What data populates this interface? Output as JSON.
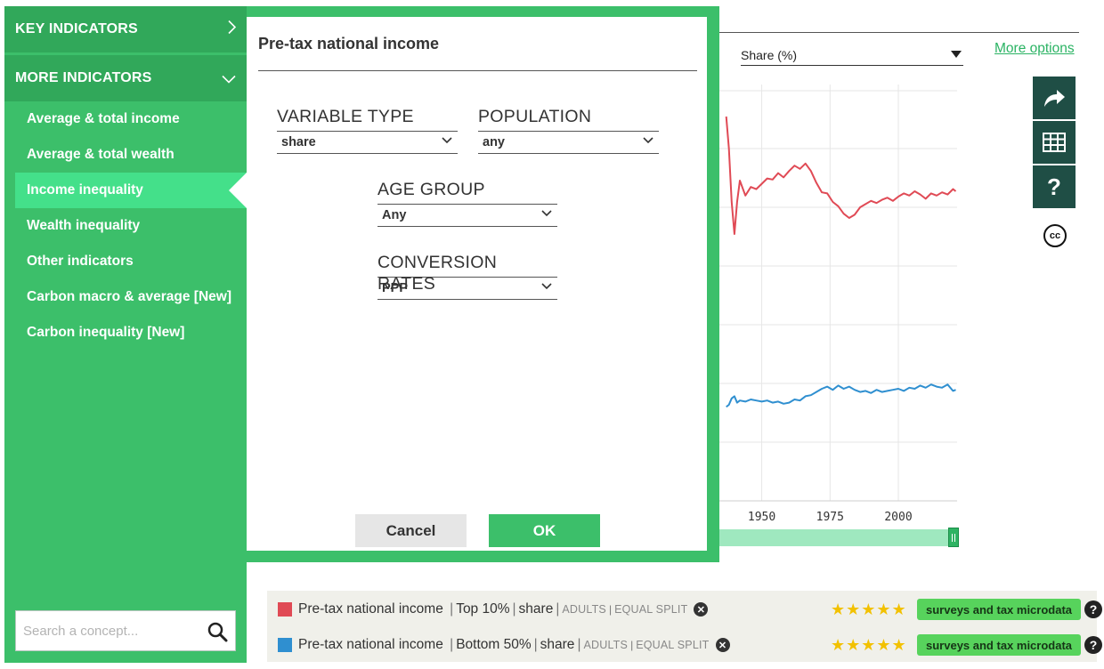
{
  "sidebar": {
    "key_indicators": "KEY INDICATORS",
    "more_indicators": "MORE INDICATORS",
    "items": [
      {
        "label": "Average & total income"
      },
      {
        "label": "Average & total wealth"
      },
      {
        "label": "Income inequality",
        "active": true
      },
      {
        "label": "Wealth inequality"
      },
      {
        "label": "Other indicators"
      },
      {
        "label": "Carbon macro & average [New]"
      },
      {
        "label": "Carbon inequality [New]"
      }
    ],
    "search_placeholder": "Search a concept..."
  },
  "modal": {
    "title": "Pre-tax national income",
    "fields": {
      "variable_type": {
        "label": "VARIABLE TYPE",
        "value": "share"
      },
      "population": {
        "label": "POPULATION",
        "value": "any"
      },
      "age_group": {
        "label": "AGE GROUP",
        "value": "Any"
      },
      "conversion_rates": {
        "label": "CONVERSION RATES",
        "value": "PPP"
      }
    },
    "cancel_label": "Cancel",
    "ok_label": "OK"
  },
  "chart_controls": {
    "share_select": "Share (%)",
    "more_options": "More options"
  },
  "chart_data": {
    "type": "line",
    "x_ticks": [
      "1950",
      "1975",
      "2000"
    ],
    "series": [
      {
        "color": "#e04a55",
        "x": [
          1937,
          1938,
          1939,
          1940,
          1941,
          1942,
          1944,
          1946,
          1948,
          1950,
          1952,
          1954,
          1956,
          1958,
          1960,
          1962,
          1964,
          1966,
          1968,
          1970,
          1972,
          1974,
          1976,
          1978,
          1980,
          1982,
          1984,
          1986,
          1988,
          1990,
          1992,
          1994,
          1996,
          1998,
          2000,
          2002,
          2004,
          2006,
          2008,
          2010,
          2012,
          2014,
          2016,
          2018,
          2020,
          2021
        ],
        "y": [
          46,
          43,
          38,
          35,
          38,
          40,
          38.6,
          39.4,
          39.2,
          39.7,
          40.2,
          40.1,
          40.7,
          40.3,
          40.9,
          41.4,
          41.1,
          41.6,
          40.9,
          39.8,
          38.9,
          38.8,
          38.0,
          37.6,
          36.9,
          36.5,
          36.8,
          37.5,
          37.8,
          38.1,
          37.9,
          38.2,
          38.4,
          38.1,
          38.5,
          38.8,
          38.6,
          39.0,
          38.7,
          38.3,
          38.8,
          38.6,
          38.9,
          38.7,
          39.2,
          39.0
        ]
      },
      {
        "color": "#2f8fd0",
        "x": [
          1937,
          1938,
          1939,
          1940,
          1941,
          1942,
          1944,
          1946,
          1948,
          1950,
          1952,
          1954,
          1956,
          1958,
          1960,
          1962,
          1964,
          1966,
          1968,
          1970,
          1972,
          1974,
          1976,
          1978,
          1980,
          1982,
          1984,
          1986,
          1988,
          1990,
          1992,
          1994,
          1996,
          1998,
          2000,
          2002,
          2004,
          2006,
          2008,
          2010,
          2012,
          2014,
          2016,
          2018,
          2020,
          2021
        ],
        "y": [
          18.8,
          19.0,
          19.6,
          19.8,
          19.2,
          19.4,
          19.3,
          19.5,
          19.4,
          19.3,
          19.4,
          19.2,
          19.3,
          19.1,
          19.2,
          19.5,
          19.4,
          19.8,
          19.9,
          20.2,
          20.5,
          20.7,
          20.4,
          20.8,
          20.5,
          20.7,
          20.4,
          20.2,
          20.3,
          20.1,
          20.4,
          20.2,
          20.3,
          20.4,
          20.5,
          20.3,
          20.6,
          20.5,
          20.8,
          20.6,
          20.9,
          20.7,
          20.6,
          20.9,
          20.3,
          20.4
        ]
      }
    ],
    "grid": true
  },
  "legend": [
    {
      "color": "#e04a55",
      "name": "Pre-tax national income",
      "group": "Top 10%",
      "type": "share",
      "pop": "ADULTS",
      "split": "EQUAL SPLIT",
      "rating": "★★★★★",
      "source": "surveys and tax microdata",
      "help": "?"
    },
    {
      "color": "#2f8fd0",
      "name": "Pre-tax national income",
      "group": "Bottom 50%",
      "type": "share",
      "pop": "ADULTS",
      "split": "EQUAL SPLIT",
      "rating": "★★★★★",
      "source": "surveys and tax microdata",
      "help": "?"
    }
  ],
  "tools": {
    "help": "?",
    "cc": "cc"
  },
  "icons": {
    "share": "share-arrow-icon",
    "table": "table-grid-icon",
    "help": "help-icon",
    "cc": "creative-commons-icon",
    "search": "search-icon"
  }
}
